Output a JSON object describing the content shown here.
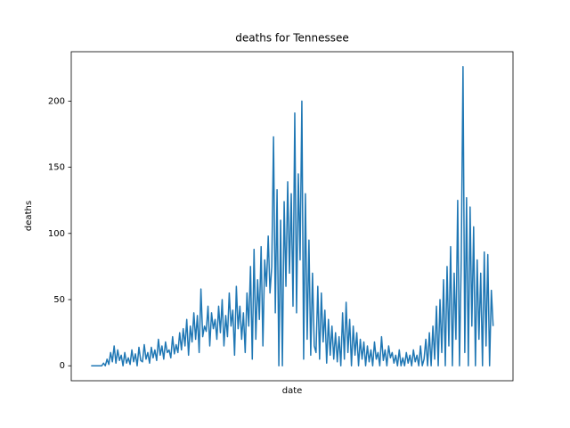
{
  "chart_data": {
    "type": "line",
    "title": "deaths for Tennessee",
    "x_label": "date",
    "y_label": "deaths",
    "ylim": [
      -11.3,
      237.3
    ],
    "yticks": [
      0,
      50,
      100,
      150,
      200
    ],
    "series": [
      {
        "name": "deaths",
        "color": "#1f77b4",
        "values": [
          0,
          0,
          0,
          0,
          0,
          0,
          0,
          2,
          0,
          5,
          1,
          10,
          3,
          15,
          2,
          12,
          4,
          8,
          0,
          10,
          2,
          6,
          1,
          12,
          3,
          9,
          0,
          14,
          4,
          3,
          16,
          5,
          10,
          2,
          14,
          6,
          12,
          4,
          20,
          8,
          15,
          5,
          18,
          10,
          12,
          6,
          22,
          9,
          16,
          10,
          25,
          12,
          28,
          15,
          35,
          8,
          30,
          18,
          40,
          20,
          38,
          10,
          58,
          22,
          30,
          26,
          45,
          15,
          40,
          28,
          35,
          20,
          45,
          25,
          50,
          15,
          38,
          22,
          55,
          30,
          42,
          8,
          60,
          28,
          45,
          20,
          40,
          10,
          55,
          30,
          75,
          5,
          88,
          20,
          65,
          35,
          90,
          15,
          80,
          60,
          98,
          55,
          75,
          173,
          40,
          133,
          0,
          110,
          0,
          124,
          60,
          139,
          70,
          130,
          45,
          191,
          40,
          145,
          80,
          200,
          5,
          130,
          20,
          95,
          8,
          70,
          15,
          10,
          60,
          5,
          55,
          18,
          42,
          2,
          35,
          8,
          30,
          5,
          25,
          3,
          22,
          0,
          40,
          5,
          48,
          10,
          35,
          0,
          30,
          8,
          25,
          0,
          20,
          5,
          18,
          0,
          15,
          3,
          12,
          0,
          18,
          5,
          10,
          0,
          22,
          4,
          12,
          0,
          15,
          6,
          10,
          2,
          8,
          0,
          12,
          0,
          6,
          0,
          10,
          2,
          8,
          0,
          12,
          3,
          8,
          0,
          15,
          0,
          5,
          20,
          0,
          25,
          0,
          30,
          5,
          45,
          0,
          50,
          10,
          65,
          0,
          75,
          15,
          90,
          0,
          70,
          20,
          125,
          0,
          80,
          226,
          10,
          127,
          0,
          120,
          30,
          105,
          0,
          80,
          20,
          70,
          0,
          86,
          15,
          84,
          0,
          57,
          30
        ]
      }
    ]
  }
}
